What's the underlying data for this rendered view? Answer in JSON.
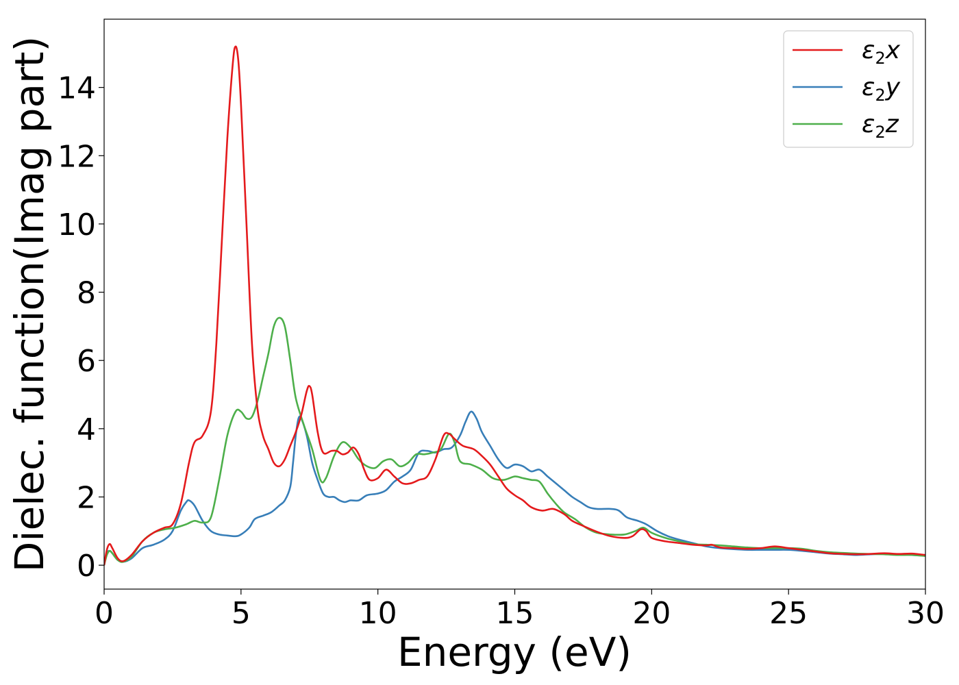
{
  "chart_data": {
    "type": "line",
    "xlabel": "Energy (eV)",
    "ylabel": "Dielec. function(Imag part)",
    "xlim": [
      0,
      30
    ],
    "ylim": [
      -0.7,
      16
    ],
    "xticks": [
      0,
      5,
      10,
      15,
      20,
      25,
      30
    ],
    "yticks": [
      0,
      2,
      4,
      6,
      8,
      10,
      12,
      14
    ],
    "grid": false,
    "legend_position": "top-right",
    "series": [
      {
        "name": "ε2x",
        "legend_base": "ε",
        "legend_sub": "2",
        "legend_suffix": "x",
        "color": "#e41a1c",
        "points": [
          [
            0,
            0
          ],
          [
            0.1,
            0.45
          ],
          [
            0.2,
            0.62
          ],
          [
            0.3,
            0.5
          ],
          [
            0.5,
            0.2
          ],
          [
            0.7,
            0.12
          ],
          [
            1.0,
            0.3
          ],
          [
            1.4,
            0.7
          ],
          [
            1.8,
            0.95
          ],
          [
            2.2,
            1.1
          ],
          [
            2.5,
            1.2
          ],
          [
            2.8,
            1.8
          ],
          [
            3.1,
            3.0
          ],
          [
            3.3,
            3.6
          ],
          [
            3.6,
            3.8
          ],
          [
            3.9,
            4.5
          ],
          [
            4.1,
            6.5
          ],
          [
            4.3,
            9.5
          ],
          [
            4.5,
            12.5
          ],
          [
            4.7,
            14.7
          ],
          [
            4.8,
            15.2
          ],
          [
            4.9,
            14.8
          ],
          [
            5.0,
            13.5
          ],
          [
            5.2,
            10.0
          ],
          [
            5.4,
            6.5
          ],
          [
            5.6,
            4.6
          ],
          [
            5.8,
            3.8
          ],
          [
            6.0,
            3.4
          ],
          [
            6.2,
            3.0
          ],
          [
            6.4,
            2.9
          ],
          [
            6.6,
            3.1
          ],
          [
            6.8,
            3.5
          ],
          [
            7.0,
            3.9
          ],
          [
            7.2,
            4.4
          ],
          [
            7.4,
            5.1
          ],
          [
            7.5,
            5.25
          ],
          [
            7.6,
            5.0
          ],
          [
            7.8,
            3.9
          ],
          [
            8.0,
            3.3
          ],
          [
            8.3,
            3.35
          ],
          [
            8.5,
            3.35
          ],
          [
            8.7,
            3.25
          ],
          [
            8.9,
            3.3
          ],
          [
            9.1,
            3.45
          ],
          [
            9.3,
            3.25
          ],
          [
            9.5,
            2.8
          ],
          [
            9.7,
            2.5
          ],
          [
            10.0,
            2.55
          ],
          [
            10.3,
            2.8
          ],
          [
            10.6,
            2.6
          ],
          [
            10.9,
            2.4
          ],
          [
            11.2,
            2.4
          ],
          [
            11.5,
            2.5
          ],
          [
            11.8,
            2.6
          ],
          [
            12.1,
            3.1
          ],
          [
            12.4,
            3.8
          ],
          [
            12.6,
            3.85
          ],
          [
            12.8,
            3.7
          ],
          [
            13.1,
            3.5
          ],
          [
            13.5,
            3.4
          ],
          [
            13.8,
            3.2
          ],
          [
            14.1,
            2.95
          ],
          [
            14.4,
            2.6
          ],
          [
            14.7,
            2.25
          ],
          [
            15.0,
            2.05
          ],
          [
            15.3,
            1.9
          ],
          [
            15.6,
            1.7
          ],
          [
            16.0,
            1.6
          ],
          [
            16.4,
            1.65
          ],
          [
            16.8,
            1.5
          ],
          [
            17.1,
            1.3
          ],
          [
            17.5,
            1.15
          ],
          [
            18.0,
            0.98
          ],
          [
            18.5,
            0.85
          ],
          [
            19.0,
            0.8
          ],
          [
            19.3,
            0.85
          ],
          [
            19.6,
            1.05
          ],
          [
            19.8,
            1.0
          ],
          [
            20.0,
            0.8
          ],
          [
            20.5,
            0.7
          ],
          [
            21.0,
            0.65
          ],
          [
            21.5,
            0.6
          ],
          [
            22.0,
            0.58
          ],
          [
            22.2,
            0.6
          ],
          [
            22.5,
            0.52
          ],
          [
            23.0,
            0.5
          ],
          [
            23.5,
            0.48
          ],
          [
            24.0,
            0.5
          ],
          [
            24.5,
            0.55
          ],
          [
            25.0,
            0.5
          ],
          [
            25.5,
            0.45
          ],
          [
            26.0,
            0.4
          ],
          [
            26.5,
            0.35
          ],
          [
            27.0,
            0.33
          ],
          [
            27.5,
            0.32
          ],
          [
            28.0,
            0.33
          ],
          [
            28.5,
            0.35
          ],
          [
            29.0,
            0.33
          ],
          [
            29.5,
            0.34
          ],
          [
            30.0,
            0.3
          ]
        ]
      },
      {
        "name": "ε2y",
        "legend_base": "ε",
        "legend_sub": "2",
        "legend_suffix": "y",
        "color": "#377eb8",
        "points": [
          [
            0,
            0
          ],
          [
            0.1,
            0.35
          ],
          [
            0.2,
            0.42
          ],
          [
            0.3,
            0.35
          ],
          [
            0.5,
            0.15
          ],
          [
            0.7,
            0.1
          ],
          [
            1.0,
            0.2
          ],
          [
            1.4,
            0.5
          ],
          [
            1.8,
            0.6
          ],
          [
            2.2,
            0.75
          ],
          [
            2.5,
            1.0
          ],
          [
            2.8,
            1.6
          ],
          [
            3.0,
            1.85
          ],
          [
            3.1,
            1.9
          ],
          [
            3.3,
            1.75
          ],
          [
            3.6,
            1.3
          ],
          [
            3.9,
            1.0
          ],
          [
            4.2,
            0.9
          ],
          [
            4.5,
            0.87
          ],
          [
            4.8,
            0.85
          ],
          [
            5.0,
            0.9
          ],
          [
            5.3,
            1.1
          ],
          [
            5.5,
            1.35
          ],
          [
            5.8,
            1.45
          ],
          [
            6.1,
            1.55
          ],
          [
            6.4,
            1.75
          ],
          [
            6.6,
            1.9
          ],
          [
            6.8,
            2.3
          ],
          [
            6.9,
            3.0
          ],
          [
            7.0,
            3.8
          ],
          [
            7.1,
            4.3
          ],
          [
            7.2,
            4.3
          ],
          [
            7.4,
            3.8
          ],
          [
            7.6,
            3.0
          ],
          [
            7.8,
            2.5
          ],
          [
            8.0,
            2.1
          ],
          [
            8.2,
            2.0
          ],
          [
            8.4,
            2.0
          ],
          [
            8.6,
            1.9
          ],
          [
            8.8,
            1.85
          ],
          [
            9.0,
            1.9
          ],
          [
            9.3,
            1.9
          ],
          [
            9.6,
            2.05
          ],
          [
            10.0,
            2.1
          ],
          [
            10.3,
            2.2
          ],
          [
            10.6,
            2.45
          ],
          [
            10.9,
            2.6
          ],
          [
            11.2,
            2.8
          ],
          [
            11.5,
            3.3
          ],
          [
            11.8,
            3.35
          ],
          [
            12.1,
            3.3
          ],
          [
            12.4,
            3.4
          ],
          [
            12.7,
            3.45
          ],
          [
            13.0,
            3.8
          ],
          [
            13.2,
            4.2
          ],
          [
            13.4,
            4.5
          ],
          [
            13.6,
            4.3
          ],
          [
            13.8,
            3.9
          ],
          [
            14.1,
            3.5
          ],
          [
            14.4,
            3.1
          ],
          [
            14.7,
            2.85
          ],
          [
            15.0,
            2.95
          ],
          [
            15.3,
            2.9
          ],
          [
            15.6,
            2.75
          ],
          [
            15.9,
            2.8
          ],
          [
            16.2,
            2.6
          ],
          [
            16.5,
            2.4
          ],
          [
            16.8,
            2.2
          ],
          [
            17.1,
            2.0
          ],
          [
            17.4,
            1.85
          ],
          [
            17.7,
            1.7
          ],
          [
            18.0,
            1.65
          ],
          [
            18.5,
            1.65
          ],
          [
            18.8,
            1.6
          ],
          [
            19.1,
            1.4
          ],
          [
            19.5,
            1.3
          ],
          [
            19.8,
            1.2
          ],
          [
            20.2,
            1.0
          ],
          [
            20.6,
            0.85
          ],
          [
            21.0,
            0.75
          ],
          [
            21.5,
            0.65
          ],
          [
            22.0,
            0.55
          ],
          [
            22.5,
            0.5
          ],
          [
            23.0,
            0.47
          ],
          [
            23.5,
            0.45
          ],
          [
            24.0,
            0.45
          ],
          [
            24.5,
            0.45
          ],
          [
            25.0,
            0.45
          ],
          [
            25.5,
            0.42
          ],
          [
            26.0,
            0.38
          ],
          [
            26.5,
            0.34
          ],
          [
            27.0,
            0.32
          ],
          [
            27.5,
            0.3
          ],
          [
            28.0,
            0.32
          ],
          [
            28.5,
            0.33
          ],
          [
            29.0,
            0.32
          ],
          [
            29.5,
            0.3
          ],
          [
            30.0,
            0.28
          ]
        ]
      },
      {
        "name": "ε2z",
        "legend_base": "ε",
        "legend_sub": "2",
        "legend_suffix": "z",
        "color": "#4daf4a",
        "points": [
          [
            0,
            0
          ],
          [
            0.1,
            0.3
          ],
          [
            0.2,
            0.42
          ],
          [
            0.3,
            0.35
          ],
          [
            0.5,
            0.15
          ],
          [
            0.7,
            0.1
          ],
          [
            1.0,
            0.25
          ],
          [
            1.4,
            0.7
          ],
          [
            1.8,
            0.95
          ],
          [
            2.2,
            1.05
          ],
          [
            2.6,
            1.1
          ],
          [
            3.0,
            1.2
          ],
          [
            3.3,
            1.3
          ],
          [
            3.6,
            1.25
          ],
          [
            3.9,
            1.4
          ],
          [
            4.2,
            2.5
          ],
          [
            4.5,
            3.8
          ],
          [
            4.8,
            4.5
          ],
          [
            5.0,
            4.5
          ],
          [
            5.2,
            4.3
          ],
          [
            5.4,
            4.35
          ],
          [
            5.6,
            4.8
          ],
          [
            5.8,
            5.5
          ],
          [
            6.0,
            6.2
          ],
          [
            6.2,
            7.0
          ],
          [
            6.4,
            7.25
          ],
          [
            6.6,
            7.0
          ],
          [
            6.8,
            6.0
          ],
          [
            7.0,
            4.9
          ],
          [
            7.3,
            4.1
          ],
          [
            7.6,
            3.4
          ],
          [
            7.9,
            2.5
          ],
          [
            8.1,
            2.55
          ],
          [
            8.4,
            3.2
          ],
          [
            8.7,
            3.6
          ],
          [
            9.0,
            3.45
          ],
          [
            9.3,
            3.1
          ],
          [
            9.6,
            2.9
          ],
          [
            9.9,
            2.85
          ],
          [
            10.2,
            3.05
          ],
          [
            10.5,
            3.1
          ],
          [
            10.8,
            2.9
          ],
          [
            11.1,
            3.0
          ],
          [
            11.4,
            3.25
          ],
          [
            11.7,
            3.25
          ],
          [
            12.0,
            3.3
          ],
          [
            12.3,
            3.4
          ],
          [
            12.6,
            3.85
          ],
          [
            12.8,
            3.6
          ],
          [
            13.0,
            3.05
          ],
          [
            13.4,
            2.95
          ],
          [
            13.8,
            2.8
          ],
          [
            14.2,
            2.55
          ],
          [
            14.6,
            2.5
          ],
          [
            15.0,
            2.6
          ],
          [
            15.3,
            2.55
          ],
          [
            15.6,
            2.5
          ],
          [
            15.9,
            2.45
          ],
          [
            16.2,
            2.1
          ],
          [
            16.5,
            1.8
          ],
          [
            16.8,
            1.55
          ],
          [
            17.2,
            1.35
          ],
          [
            17.6,
            1.1
          ],
          [
            18.0,
            0.95
          ],
          [
            18.5,
            0.9
          ],
          [
            19.0,
            0.9
          ],
          [
            19.4,
            1.0
          ],
          [
            19.7,
            1.1
          ],
          [
            20.0,
            0.95
          ],
          [
            20.5,
            0.8
          ],
          [
            21.0,
            0.7
          ],
          [
            21.5,
            0.62
          ],
          [
            22.0,
            0.6
          ],
          [
            22.5,
            0.58
          ],
          [
            23.0,
            0.55
          ],
          [
            23.5,
            0.52
          ],
          [
            24.0,
            0.5
          ],
          [
            24.5,
            0.5
          ],
          [
            25.0,
            0.5
          ],
          [
            25.5,
            0.48
          ],
          [
            26.0,
            0.42
          ],
          [
            26.5,
            0.38
          ],
          [
            27.0,
            0.36
          ],
          [
            27.5,
            0.34
          ],
          [
            28.0,
            0.33
          ],
          [
            28.5,
            0.32
          ],
          [
            29.0,
            0.3
          ],
          [
            29.5,
            0.3
          ],
          [
            30.0,
            0.27
          ]
        ]
      }
    ]
  }
}
